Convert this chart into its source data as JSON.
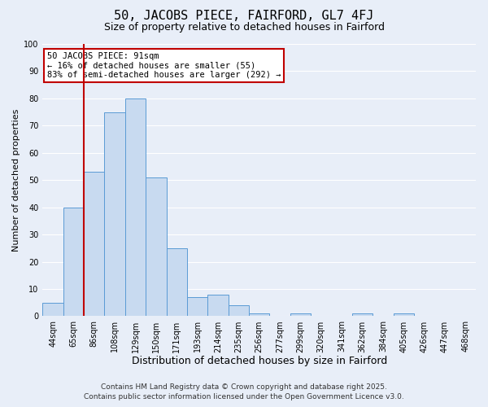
{
  "title": "50, JACOBS PIECE, FAIRFORD, GL7 4FJ",
  "subtitle": "Size of property relative to detached houses in Fairford",
  "xlabel": "Distribution of detached houses by size in Fairford",
  "ylabel": "Number of detached properties",
  "bar_labels": [
    "44sqm",
    "65sqm",
    "86sqm",
    "108sqm",
    "129sqm",
    "150sqm",
    "171sqm",
    "193sqm",
    "214sqm",
    "235sqm",
    "256sqm",
    "277sqm",
    "299sqm",
    "320sqm",
    "341sqm",
    "362sqm",
    "384sqm",
    "405sqm",
    "426sqm",
    "447sqm",
    "468sqm"
  ],
  "bar_values": [
    5,
    40,
    53,
    75,
    80,
    51,
    25,
    7,
    8,
    4,
    1,
    0,
    1,
    0,
    0,
    1,
    0,
    1,
    0,
    0,
    0
  ],
  "bar_color": "#c8daf0",
  "bar_edge_color": "#5b9bd5",
  "background_color": "#e8eef8",
  "grid_color": "#ffffff",
  "vline_color": "#c00000",
  "annotation_title": "50 JACOBS PIECE: 91sqm",
  "annotation_line1": "← 16% of detached houses are smaller (55)",
  "annotation_line2": "83% of semi-detached houses are larger (292) →",
  "annotation_box_color": "#ffffff",
  "annotation_box_edge": "#c00000",
  "ylim": [
    0,
    100
  ],
  "footer1": "Contains HM Land Registry data © Crown copyright and database right 2025.",
  "footer2": "Contains public sector information licensed under the Open Government Licence v3.0.",
  "title_fontsize": 11,
  "subtitle_fontsize": 9,
  "xlabel_fontsize": 9,
  "ylabel_fontsize": 8,
  "tick_fontsize": 7,
  "ann_fontsize": 7.5,
  "footer_fontsize": 6.5
}
